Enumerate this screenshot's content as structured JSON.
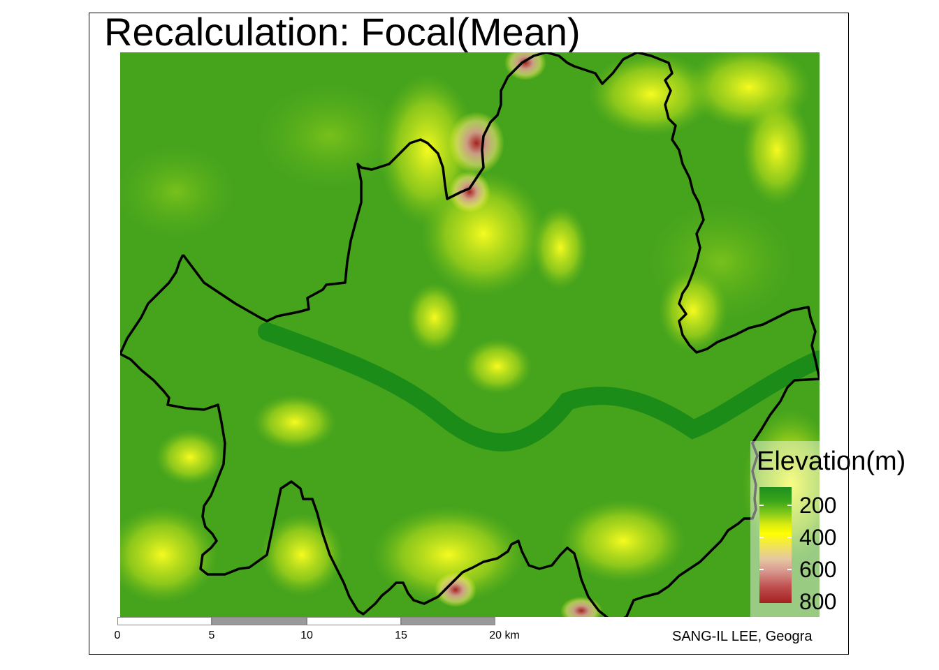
{
  "title": "Recalculation: Focal(Mean)",
  "legend": {
    "title": "Elevation(m)",
    "ticks": [
      "200",
      "400",
      "600",
      "800"
    ],
    "colors": [
      "#1e8f1e",
      "#ffff00",
      "#e6c8a0",
      "#a52020"
    ]
  },
  "scalebar": {
    "labels": [
      "0",
      "5",
      "10",
      "15",
      "20 km"
    ]
  },
  "credit": "SANG-IL LEE, Geogra",
  "colors": {
    "lowland": "#1e8f1e",
    "midland": "#ffff00",
    "highland": "#a52020",
    "boundary": "#000000",
    "river": "#178a1a"
  }
}
